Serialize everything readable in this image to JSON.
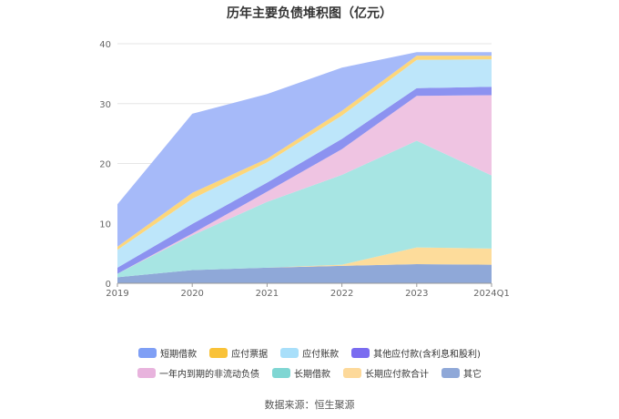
{
  "chart_data": {
    "type": "area",
    "stacked": true,
    "title": "历年主要负债堆积图（亿元）",
    "categories": [
      "2019",
      "2020",
      "2021",
      "2022",
      "2023",
      "2024Q1"
    ],
    "ylim": [
      0,
      40
    ],
    "yticks": [
      0,
      10,
      20,
      30,
      40
    ],
    "grid": true,
    "legend_position": "bottom",
    "series": [
      {
        "name": "其它",
        "color": "#8fa8d8",
        "values": [
          1.0,
          2.2,
          2.6,
          2.9,
          3.2,
          3.1
        ]
      },
      {
        "name": "长期应付款合计",
        "color": "#fddc9b",
        "values": [
          0.0,
          0.0,
          0.0,
          0.2,
          2.8,
          2.7
        ]
      },
      {
        "name": "长期借款",
        "color": "#a7e5e3",
        "values": [
          0.6,
          5.8,
          11.0,
          15.0,
          17.8,
          12.2
        ]
      },
      {
        "name": "一年内到期的非流动负债",
        "color": "#efc4e2",
        "values": [
          0.0,
          0.3,
          1.7,
          4.3,
          7.5,
          13.4
        ]
      },
      {
        "name": "其他应付款(含利息和股利)",
        "color": "#8c92f0",
        "values": [
          1.0,
          1.6,
          1.5,
          1.7,
          1.3,
          1.4
        ]
      },
      {
        "name": "应付账款",
        "color": "#bde6fa",
        "values": [
          3.0,
          4.2,
          3.4,
          3.9,
          4.7,
          4.6
        ]
      },
      {
        "name": "应付票据",
        "color": "#fdd67a",
        "values": [
          0.5,
          1.0,
          0.6,
          0.8,
          0.7,
          0.6
        ]
      },
      {
        "name": "短期借款",
        "color": "#a6baf9",
        "values": [
          7.1,
          13.2,
          10.8,
          7.2,
          0.6,
          0.6
        ]
      }
    ],
    "legend_order": [
      "短期借款",
      "应付票据",
      "应付账款",
      "其他应付款(含利息和股利)",
      "一年内到期的非流动负债",
      "长期借款",
      "长期应付款合计",
      "其它"
    ]
  },
  "legend_colors": {
    "短期借款": "#7f9ff5",
    "应付票据": "#f9c238",
    "应付账款": "#a8dffa",
    "其他应付款(含利息和股利)": "#7a6cf0",
    "一年内到期的非流动负债": "#e8b3dd",
    "长期借款": "#7fd6d3",
    "长期应付款合计": "#fdd99a",
    "其它": "#8fa8d8"
  },
  "source": "数据来源：恒生聚源"
}
